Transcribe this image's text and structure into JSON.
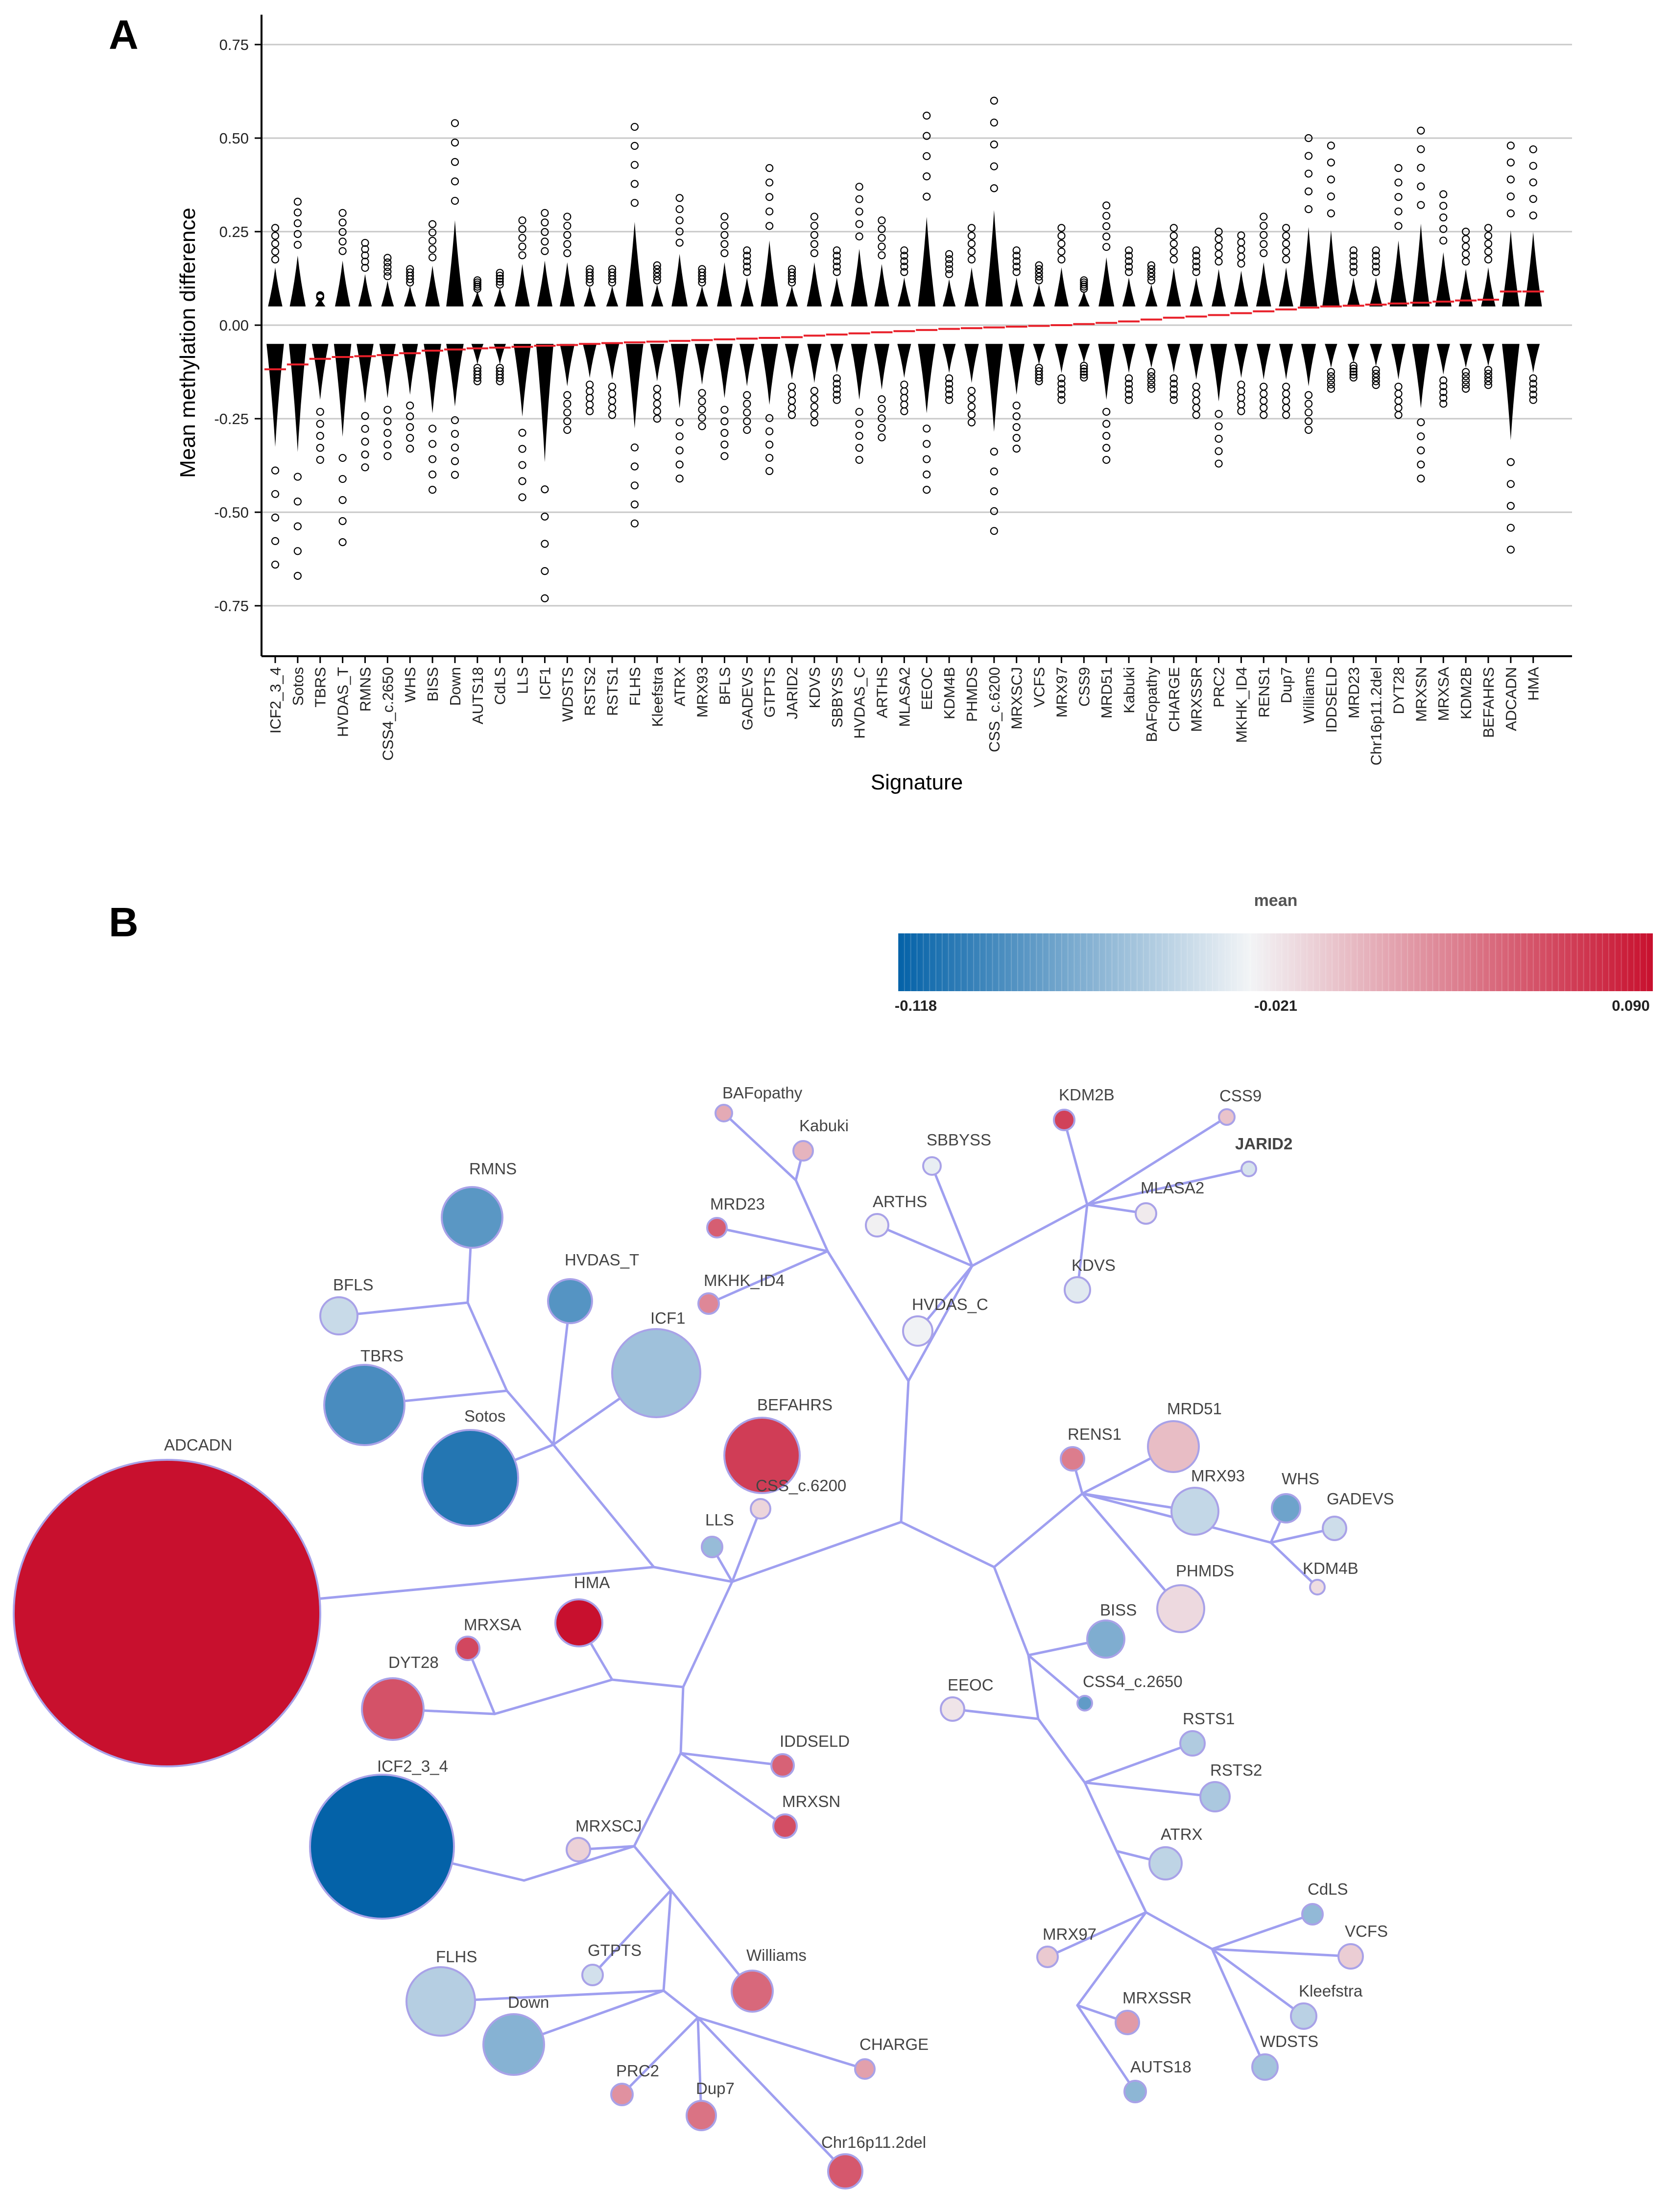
{
  "panel_a_label": "A",
  "panel_b_label": "B",
  "highlight_color": "#e8202a",
  "chart_data": [
    {
      "type": "dot",
      "xlabel": "Signature",
      "ylabel": "Mean methylation difference",
      "ylim": [
        -0.85,
        0.8
      ],
      "yticks": [
        -0.75,
        -0.5,
        -0.25,
        0.0,
        0.25,
        0.5,
        0.75
      ],
      "ytick_labels": [
        "-0.75",
        "-0.50",
        "-0.25",
        "0.00",
        "0.25",
        "0.50",
        "0.75"
      ],
      "grid": true,
      "highlight": "JARID2",
      "mean_line_color": "#e8202a",
      "categories": [
        "ICF2_3_4",
        "Sotos",
        "TBRS",
        "HVDAS_T",
        "RMNS",
        "CSS4_c.2650",
        "WHS",
        "BISS",
        "Down",
        "AUTS18",
        "CdLS",
        "LLS",
        "ICF1",
        "WDSTS",
        "RSTS2",
        "RSTS1",
        "FLHS",
        "Kleefstra",
        "ATRX",
        "MRX93",
        "BFLS",
        "GADEVS",
        "GTPTS",
        "JARID2",
        "KDVS",
        "SBBYSS",
        "HVDAS_C",
        "ARTHS",
        "MLASA2",
        "EEOC",
        "KDM4B",
        "PHMDS",
        "CSS_c.6200",
        "MRXSCJ",
        "VCFS",
        "MRX97",
        "CSS9",
        "MRD51",
        "Kabuki",
        "BAFopathy",
        "CHARGE",
        "MRXSSR",
        "PRC2",
        "MKHK_ID4",
        "RENS1",
        "Dup7",
        "Williams",
        "IDDSELD",
        "MRD23",
        "Chr16p11.2del",
        "DYT28",
        "MRXSN",
        "MRXSA",
        "KDM2B",
        "BEFAHRS",
        "ADCADN",
        "HMA"
      ],
      "means": [
        -0.118,
        -0.105,
        -0.09,
        -0.085,
        -0.083,
        -0.08,
        -0.075,
        -0.068,
        -0.065,
        -0.062,
        -0.06,
        -0.058,
        -0.055,
        -0.053,
        -0.05,
        -0.048,
        -0.046,
        -0.044,
        -0.042,
        -0.04,
        -0.038,
        -0.036,
        -0.034,
        -0.032,
        -0.028,
        -0.025,
        -0.022,
        -0.019,
        -0.016,
        -0.013,
        -0.01,
        -0.008,
        -0.006,
        -0.004,
        -0.002,
        0.0,
        0.003,
        0.006,
        0.01,
        0.015,
        0.02,
        0.023,
        0.027,
        0.032,
        0.037,
        0.042,
        0.047,
        0.05,
        0.052,
        0.055,
        0.058,
        0.06,
        0.063,
        0.066,
        0.068,
        0.09,
        0.09
      ],
      "max_pos": [
        0.26,
        0.33,
        0.08,
        0.3,
        0.22,
        0.18,
        0.15,
        0.27,
        0.54,
        0.12,
        0.14,
        0.28,
        0.3,
        0.29,
        0.15,
        0.15,
        0.53,
        0.16,
        0.34,
        0.15,
        0.29,
        0.2,
        0.42,
        0.15,
        0.29,
        0.2,
        0.37,
        0.28,
        0.2,
        0.56,
        0.19,
        0.26,
        0.6,
        0.2,
        0.16,
        0.26,
        0.12,
        0.32,
        0.2,
        0.16,
        0.26,
        0.2,
        0.25,
        0.24,
        0.29,
        0.26,
        0.5,
        0.48,
        0.2,
        0.2,
        0.42,
        0.52,
        0.35,
        0.25,
        0.26,
        0.48,
        0.47
      ],
      "min_neg": [
        -0.64,
        -0.67,
        -0.36,
        -0.58,
        -0.38,
        -0.35,
        -0.33,
        -0.44,
        -0.4,
        -0.15,
        -0.15,
        -0.46,
        -0.73,
        -0.28,
        -0.23,
        -0.24,
        -0.53,
        -0.25,
        -0.41,
        -0.27,
        -0.35,
        -0.28,
        -0.39,
        -0.24,
        -0.26,
        -0.2,
        -0.36,
        -0.3,
        -0.23,
        -0.44,
        -0.2,
        -0.26,
        -0.55,
        -0.33,
        -0.15,
        -0.2,
        -0.14,
        -0.36,
        -0.2,
        -0.17,
        -0.2,
        -0.24,
        -0.37,
        -0.23,
        -0.24,
        -0.24,
        -0.28,
        -0.17,
        -0.14,
        -0.16,
        -0.24,
        -0.41,
        -0.21,
        -0.17,
        -0.16,
        -0.6,
        -0.2
      ]
    },
    {
      "type": "network",
      "legend": {
        "title": "mean",
        "min_label": "-0.118",
        "mid_label": "-0.021",
        "max_label": "0.090",
        "min": -0.118,
        "mid": -0.021,
        "max": 0.09,
        "low_color": "#0462a8",
        "mid_color": "#f2f4f6",
        "high_color": "#c8102e"
      },
      "nodes": [
        {
          "name": "BAFopathy",
          "mean": 0.015
        },
        {
          "name": "KDM2B",
          "mean": 0.066
        },
        {
          "name": "CSS9",
          "mean": 0.003
        },
        {
          "name": "JARID2",
          "mean": -0.032
        },
        {
          "name": "Kabuki",
          "mean": 0.01
        },
        {
          "name": "SBBYSS",
          "mean": -0.025
        },
        {
          "name": "MLASA2",
          "mean": -0.016
        },
        {
          "name": "RMNS",
          "mean": -0.083
        },
        {
          "name": "MRD23",
          "mean": 0.052
        },
        {
          "name": "ARTHS",
          "mean": -0.019
        },
        {
          "name": "HVDAS_T",
          "mean": -0.085
        },
        {
          "name": "KDVS",
          "mean": -0.028
        },
        {
          "name": "BFLS",
          "mean": -0.038
        },
        {
          "name": "MKHK_ID4",
          "mean": 0.032
        },
        {
          "name": "ICF1",
          "mean": -0.055
        },
        {
          "name": "HVDAS_C",
          "mean": -0.022
        },
        {
          "name": "TBRS",
          "mean": -0.09
        },
        {
          "name": "BEFAHRS",
          "mean": 0.068
        },
        {
          "name": "MRD51",
          "mean": 0.006
        },
        {
          "name": "RENS1",
          "mean": 0.037
        },
        {
          "name": "Sotos",
          "mean": -0.105
        },
        {
          "name": "MRX93",
          "mean": -0.04
        },
        {
          "name": "WHS",
          "mean": -0.075
        },
        {
          "name": "ADCADN",
          "mean": 0.09
        },
        {
          "name": "GADEVS",
          "mean": -0.036
        },
        {
          "name": "CSS_c.6200",
          "mean": -0.006
        },
        {
          "name": "KDM4B",
          "mean": -0.01
        },
        {
          "name": "LLS",
          "mean": -0.058
        },
        {
          "name": "PHMDS",
          "mean": -0.008
        },
        {
          "name": "HMA",
          "mean": 0.09
        },
        {
          "name": "MRXSA",
          "mean": 0.063
        },
        {
          "name": "BISS",
          "mean": -0.068
        },
        {
          "name": "DYT28",
          "mean": 0.058
        },
        {
          "name": "CSS4_c.2650",
          "mean": -0.08
        },
        {
          "name": "EEOC",
          "mean": -0.013
        },
        {
          "name": "IDDSELD",
          "mean": 0.05
        },
        {
          "name": "RSTS1",
          "mean": -0.048
        },
        {
          "name": "ICF2_3_4",
          "mean": -0.118
        },
        {
          "name": "MRXSN",
          "mean": 0.06
        },
        {
          "name": "RSTS2",
          "mean": -0.05
        },
        {
          "name": "MRXSCJ",
          "mean": -0.004
        },
        {
          "name": "ATRX",
          "mean": -0.042
        },
        {
          "name": "CdLS",
          "mean": -0.06
        },
        {
          "name": "VCFS",
          "mean": -0.002
        },
        {
          "name": "MRX97",
          "mean": 0.0
        },
        {
          "name": "GTPTS",
          "mean": -0.034
        },
        {
          "name": "Williams",
          "mean": 0.047
        },
        {
          "name": "FLHS",
          "mean": -0.046
        },
        {
          "name": "Kleefstra",
          "mean": -0.044
        },
        {
          "name": "MRXSSR",
          "mean": 0.023
        },
        {
          "name": "Down",
          "mean": -0.065
        },
        {
          "name": "CHARGE",
          "mean": 0.02
        },
        {
          "name": "WDSTS",
          "mean": -0.053
        },
        {
          "name": "AUTS18",
          "mean": -0.062
        },
        {
          "name": "PRC2",
          "mean": 0.027
        },
        {
          "name": "Dup7",
          "mean": 0.042
        },
        {
          "name": "Chr16p11.2del",
          "mean": 0.055
        }
      ]
    }
  ]
}
